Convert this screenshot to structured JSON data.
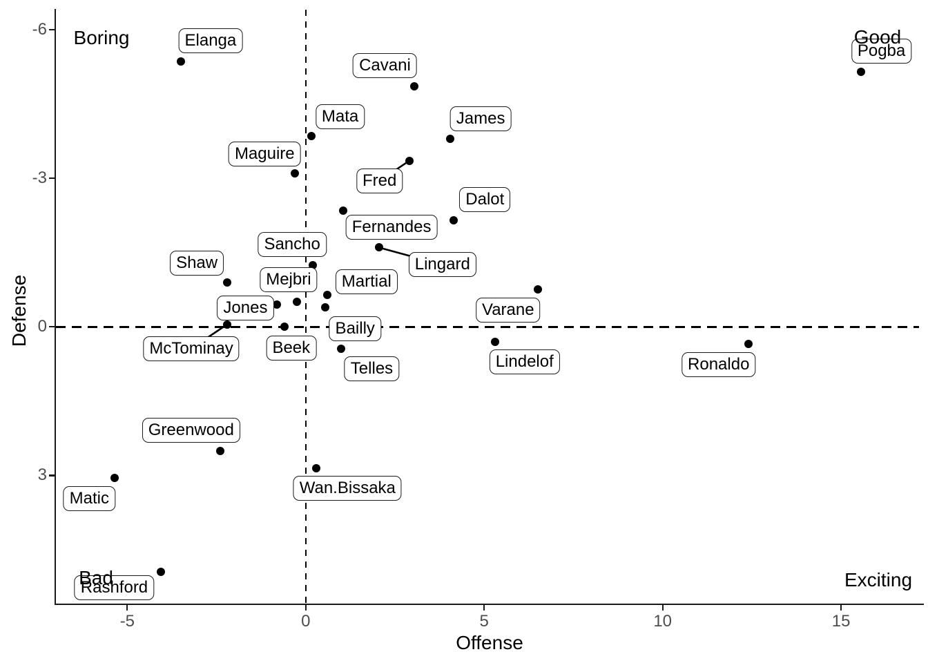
{
  "chart_data": {
    "type": "scatter",
    "title": "",
    "xlabel": "Offense",
    "ylabel": "Defense",
    "x_ticks": [
      -5,
      0,
      5,
      10,
      15
    ],
    "y_ticks": [
      -6,
      -3,
      0,
      3
    ],
    "xlim": [
      -7.0,
      17.3
    ],
    "ylim": [
      -6.4,
      5.6
    ],
    "y_axis_reversed": true,
    "grid": false,
    "reference_lines": [
      {
        "axis": "vertical",
        "x": 0,
        "style": "dashed"
      },
      {
        "axis": "horizontal",
        "y": 0,
        "style": "dashed"
      }
    ],
    "annotations": [
      {
        "text": "Boring",
        "position": "top-left"
      },
      {
        "text": "Good",
        "position": "top-right"
      },
      {
        "text": "Bad",
        "position": "bottom-left"
      },
      {
        "text": "Exciting",
        "position": "bottom-right"
      }
    ],
    "series": [
      {
        "name": "players",
        "points": [
          {
            "label": "Elanga",
            "offense": -3.5,
            "defense": -5.35,
            "label_dx": 43,
            "label_dy": -30,
            "segment": false
          },
          {
            "label": "Pogba",
            "offense": 15.55,
            "defense": -5.15,
            "label_dx": 30,
            "label_dy": -30,
            "segment": false
          },
          {
            "label": "Cavani",
            "offense": 3.05,
            "defense": -4.85,
            "label_dx": -43,
            "label_dy": -30,
            "segment": false
          },
          {
            "label": "Mata",
            "offense": 0.15,
            "defense": -3.85,
            "label_dx": 42,
            "label_dy": -28,
            "segment": false
          },
          {
            "label": "James",
            "offense": 4.05,
            "defense": -3.8,
            "label_dx": 44,
            "label_dy": -29,
            "segment": false
          },
          {
            "label": "Fred",
            "offense": 2.9,
            "defense": -3.35,
            "label_dx": -43,
            "label_dy": 29,
            "segment": true
          },
          {
            "label": "Maguire",
            "offense": -0.3,
            "defense": -3.1,
            "label_dx": -44,
            "label_dy": -28,
            "segment": false
          },
          {
            "label": "Fernandes",
            "offense": 1.05,
            "defense": -2.35,
            "label_dx": 70,
            "label_dy": 24,
            "segment": false
          },
          {
            "label": "Dalot",
            "offense": 4.15,
            "defense": -2.15,
            "label_dx": 45,
            "label_dy": -30,
            "segment": false
          },
          {
            "label": "Lingard",
            "offense": 2.05,
            "defense": -1.6,
            "label_dx": 92,
            "label_dy": 25,
            "segment": true
          },
          {
            "label": "Sancho",
            "offense": 0.2,
            "defense": -1.25,
            "label_dx": -30,
            "label_dy": -30,
            "segment": false
          },
          {
            "label": "Shaw",
            "offense": -2.2,
            "defense": -0.9,
            "label_dx": -44,
            "label_dy": -28,
            "segment": false
          },
          {
            "label": "Varane",
            "offense": 6.5,
            "defense": -0.75,
            "label_dx": -43,
            "label_dy": 30,
            "segment": false
          },
          {
            "label": "Martial",
            "offense": 0.6,
            "defense": -0.65,
            "label_dx": 57,
            "label_dy": -19,
            "segment": false
          },
          {
            "label": "Mejbri",
            "offense": -0.25,
            "defense": -0.5,
            "label_dx": -12,
            "label_dy": -32,
            "segment": false
          },
          {
            "label": "Jones",
            "offense": -0.8,
            "defense": -0.45,
            "label_dx": -46,
            "label_dy": 5,
            "segment": false
          },
          {
            "label": "Bailly",
            "offense": 0.55,
            "defense": -0.4,
            "label_dx": 43,
            "label_dy": 31,
            "segment": false
          },
          {
            "label": "McTominay",
            "offense": -2.2,
            "defense": -0.05,
            "label_dx": -52,
            "label_dy": 35,
            "segment": true
          },
          {
            "label": "Beek",
            "offense": -0.6,
            "defense": 0.0,
            "label_dx": 10,
            "label_dy": 31,
            "segment": false
          },
          {
            "label": "Lindelof",
            "offense": 5.3,
            "defense": 0.3,
            "label_dx": 43,
            "label_dy": 29,
            "segment": false
          },
          {
            "label": "Ronaldo",
            "offense": 12.4,
            "defense": 0.35,
            "label_dx": -43,
            "label_dy": 30,
            "segment": false
          },
          {
            "label": "Telles",
            "offense": 1.0,
            "defense": 0.45,
            "label_dx": 44,
            "label_dy": 29,
            "segment": false
          },
          {
            "label": "Greenwood",
            "offense": -2.4,
            "defense": 2.5,
            "label_dx": -42,
            "label_dy": -30,
            "segment": false
          },
          {
            "label": "Wan.Bissaka",
            "offense": 0.3,
            "defense": 2.85,
            "label_dx": 45,
            "label_dy": 29,
            "segment": false
          },
          {
            "label": "Matic",
            "offense": -5.35,
            "defense": 3.05,
            "label_dx": -37,
            "label_dy": 30,
            "segment": false
          },
          {
            "label": "Rashford",
            "offense": -4.05,
            "defense": 4.95,
            "label_dx": -68,
            "label_dy": 23,
            "segment": false
          }
        ]
      }
    ],
    "colors": {
      "point": "#000000",
      "label_background": "#ffffff",
      "label_border": "#1a1a1a",
      "axis_line": "#1a1a1a",
      "tick_text": "#4d4d4d",
      "reference_line": "#000000",
      "segment": "#000000"
    }
  }
}
